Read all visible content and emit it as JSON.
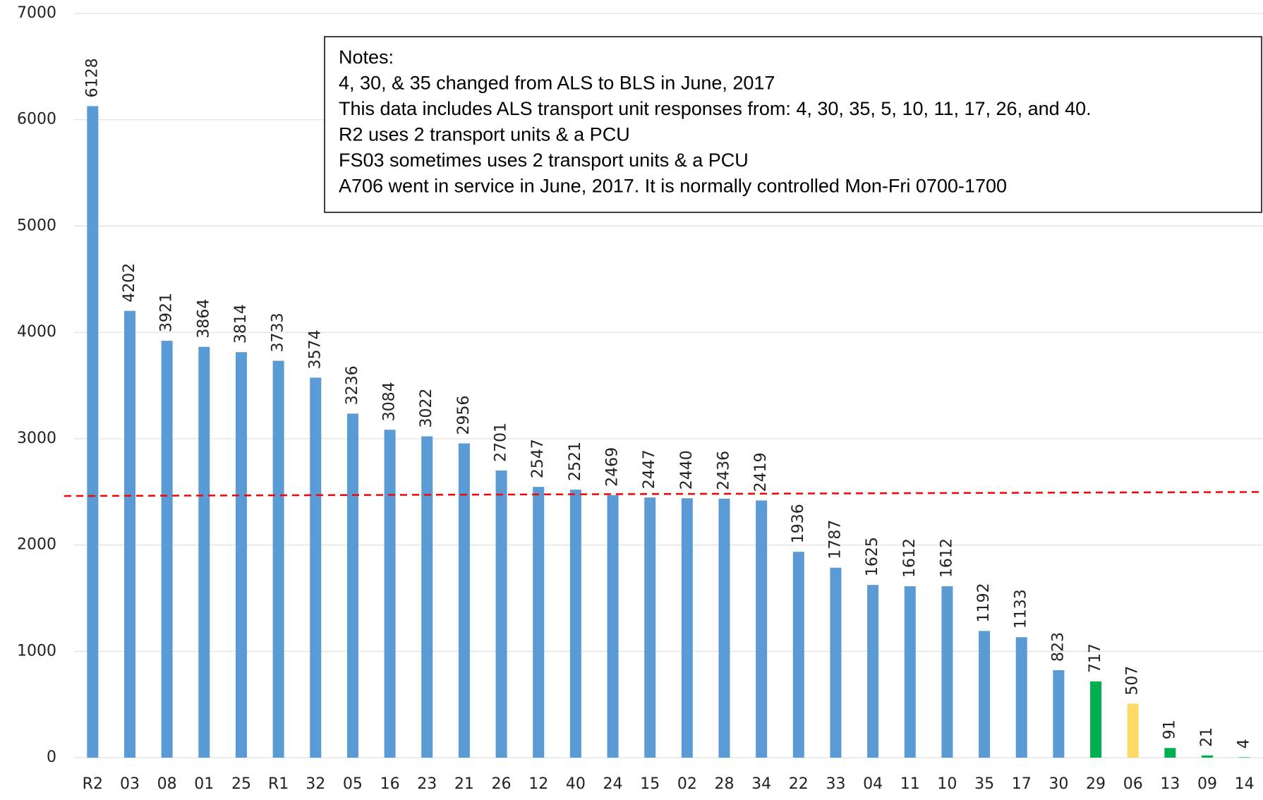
{
  "chart_data": {
    "type": "bar",
    "categories": [
      "R2",
      "03",
      "08",
      "01",
      "25",
      "R1",
      "32",
      "05",
      "16",
      "23",
      "21",
      "26",
      "12",
      "40",
      "24",
      "15",
      "02",
      "28",
      "34",
      "22",
      "33",
      "04",
      "11",
      "10",
      "35",
      "17",
      "30",
      "29",
      "06",
      "13",
      "09",
      "14"
    ],
    "values": [
      6128,
      4202,
      3921,
      3864,
      3814,
      3733,
      3574,
      3236,
      3084,
      3022,
      2956,
      2701,
      2547,
      2521,
      2469,
      2447,
      2440,
      2436,
      2419,
      1936,
      1787,
      1625,
      1612,
      1612,
      1192,
      1133,
      823,
      717,
      507,
      91,
      21,
      4
    ],
    "colors": [
      "#5b9bd5",
      "#5b9bd5",
      "#5b9bd5",
      "#5b9bd5",
      "#5b9bd5",
      "#5b9bd5",
      "#5b9bd5",
      "#5b9bd5",
      "#5b9bd5",
      "#5b9bd5",
      "#5b9bd5",
      "#5b9bd5",
      "#5b9bd5",
      "#5b9bd5",
      "#5b9bd5",
      "#5b9bd5",
      "#5b9bd5",
      "#5b9bd5",
      "#5b9bd5",
      "#5b9bd5",
      "#5b9bd5",
      "#5b9bd5",
      "#5b9bd5",
      "#5b9bd5",
      "#5b9bd5",
      "#5b9bd5",
      "#5b9bd5",
      "#00b050",
      "#ffd966",
      "#00b050",
      "#00b050",
      "#00b050"
    ],
    "ylim": [
      0,
      7000
    ],
    "yticks": [
      0,
      1000,
      2000,
      3000,
      4000,
      5000,
      6000,
      7000
    ],
    "grid": true,
    "trend_line": {
      "values": [
        2461,
        2499
      ],
      "color": "#ff0000"
    },
    "notes": [
      "Notes:",
      "4, 30, & 35 changed from ALS to BLS in June, 2017",
      "This data includes ALS transport unit responses from: 4, 30, 35, 5, 10, 11, 17, 26, and 40.",
      "R2 uses 2 transport units & a PCU",
      "FS03 sometimes uses 2 transport units & a PCU",
      "A706 went in service in June, 2017.  It is normally controlled Mon-Fri 0700-1700"
    ]
  }
}
